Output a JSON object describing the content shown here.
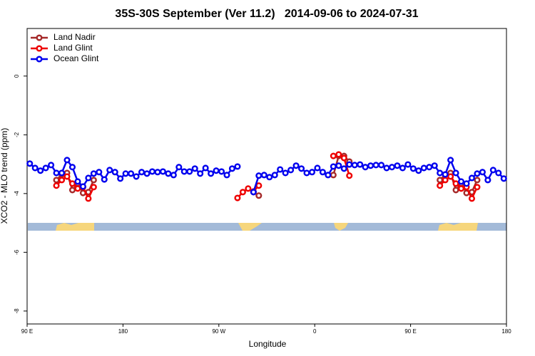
{
  "chart_data": {
    "type": "line",
    "title": "35S-30S September (Ver 11.2)   2014-09-06 to 2024-07-31",
    "x_label": "Longitude",
    "y_label": "XCO2 - MLO trend (ppm)",
    "xlim": [
      90,
      540
    ],
    "xticks": [
      {
        "value": 90,
        "label": "90 E"
      },
      180,
      {
        "value": 270,
        "label": "90 W"
      },
      {
        "value": 360,
        "label": "0"
      },
      {
        "value": 450,
        "label": "90 E"
      },
      {
        "value": 540,
        "label": "180"
      }
    ],
    "ylim": [
      -8.44,
      1.62
    ],
    "yticks": [
      0,
      -2,
      -4,
      -6,
      -8
    ],
    "legend": "top-left",
    "x": [
      92.5,
      97.5,
      102.5,
      107.5,
      112.5,
      117.5,
      122.5,
      127.5,
      132.5,
      137.5,
      142.5,
      147.5,
      152.5,
      157.5,
      162.5,
      167.5,
      172.5,
      177.5,
      182.5,
      187.5,
      192.5,
      197.5,
      202.5,
      207.5,
      212.5,
      217.5,
      222.5,
      227.5,
      232.5,
      237.5,
      242.5,
      247.5,
      252.5,
      257.5,
      262.5,
      267.5,
      272.5,
      277.5,
      282.5,
      287.5,
      292.5,
      297.5,
      302.5,
      307.5,
      312.5,
      317.5,
      322.5,
      327.5,
      332.5,
      337.5,
      342.5,
      347.5,
      352.5,
      357.5,
      362.5,
      367.5,
      372.5,
      377.5,
      382.5,
      387.5,
      392.5,
      397.5,
      402.5,
      407.5,
      412.5,
      417.5,
      422.5,
      427.5,
      432.5,
      437.5,
      442.5,
      447.5,
      452.5,
      457.5,
      462.5,
      467.5,
      472.5,
      477.5,
      482.5,
      487.5,
      492.5,
      497.5,
      502.5,
      507.5,
      512.5,
      517.5,
      522.5,
      527.5,
      532.5,
      537.5
    ],
    "series": [
      {
        "name": "Land Nadir",
        "color": "#a52a2a",
        "values": [
          null,
          null,
          null,
          null,
          null,
          -3.54,
          -3.35,
          -3.3,
          -3.88,
          -3.66,
          -3.98,
          -3.95,
          -3.54,
          null,
          null,
          null,
          null,
          null,
          null,
          null,
          null,
          null,
          null,
          null,
          null,
          null,
          null,
          null,
          null,
          null,
          null,
          null,
          null,
          null,
          null,
          null,
          null,
          null,
          null,
          null,
          null,
          null,
          -3.95,
          -4.07,
          null,
          null,
          null,
          null,
          null,
          null,
          null,
          null,
          null,
          null,
          null,
          null,
          null,
          -3.37,
          -2.72,
          -2.72,
          -2.91,
          null,
          null,
          null,
          null,
          null,
          null,
          null,
          null,
          null,
          null,
          null,
          null,
          null,
          null,
          null,
          null,
          -3.54,
          -3.35,
          -3.3,
          -3.88,
          -3.66,
          -3.98,
          -3.95,
          -3.54,
          null,
          null,
          null,
          null,
          null
        ]
      },
      {
        "name": "Land Glint",
        "color": "#ee0000",
        "values": [
          null,
          null,
          null,
          null,
          null,
          -3.73,
          -3.54,
          -3.42,
          -3.66,
          -3.83,
          -3.78,
          -4.17,
          -3.78,
          null,
          null,
          null,
          null,
          null,
          null,
          null,
          null,
          null,
          null,
          null,
          null,
          null,
          null,
          null,
          null,
          null,
          null,
          null,
          null,
          null,
          null,
          null,
          null,
          null,
          null,
          -4.15,
          -3.95,
          -3.83,
          -3.93,
          -3.73,
          null,
          null,
          null,
          null,
          null,
          null,
          null,
          null,
          null,
          null,
          null,
          null,
          null,
          -2.72,
          -2.67,
          -2.79,
          -3.39,
          null,
          null,
          null,
          null,
          null,
          null,
          null,
          null,
          null,
          null,
          null,
          null,
          null,
          null,
          null,
          null,
          -3.73,
          -3.54,
          -3.42,
          -3.66,
          -3.83,
          -3.78,
          -4.17,
          -3.78,
          null,
          null,
          null,
          null,
          null
        ]
      },
      {
        "name": "Ocean Glint",
        "color": "#0000ee",
        "values": [
          -2.98,
          -3.13,
          -3.22,
          -3.13,
          -3.03,
          -3.3,
          -3.3,
          -2.86,
          -3.1,
          -3.59,
          -3.76,
          -3.47,
          -3.32,
          -3.27,
          -3.52,
          -3.2,
          -3.27,
          -3.49,
          -3.32,
          -3.32,
          -3.42,
          -3.27,
          -3.32,
          -3.25,
          -3.27,
          -3.25,
          -3.32,
          -3.37,
          -3.1,
          -3.25,
          -3.25,
          -3.15,
          -3.32,
          -3.13,
          -3.32,
          -3.22,
          -3.25,
          -3.37,
          -3.15,
          -3.08,
          null,
          null,
          -3.95,
          -3.39,
          -3.37,
          -3.44,
          -3.37,
          -3.18,
          -3.3,
          -3.2,
          -3.05,
          -3.15,
          -3.3,
          -3.27,
          -3.13,
          -3.27,
          -3.37,
          -3.08,
          -3.05,
          -3.15,
          -3.01,
          -3.03,
          -3.01,
          -3.1,
          -3.05,
          -3.03,
          -3.03,
          -3.13,
          -3.1,
          -3.05,
          -3.13,
          -3.01,
          -3.15,
          -3.22,
          -3.13,
          -3.1,
          -3.05,
          -3.3,
          -3.35,
          -2.86,
          -3.3,
          -3.59,
          -3.66,
          -3.47,
          -3.32,
          -3.27,
          -3.54,
          -3.2,
          -3.3,
          -3.49
        ]
      }
    ]
  }
}
